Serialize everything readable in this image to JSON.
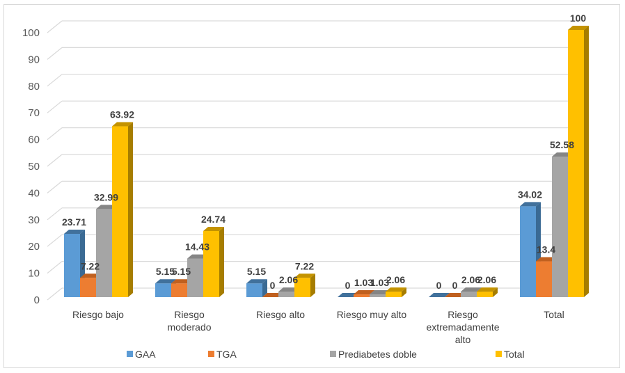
{
  "chart_data": {
    "type": "bar",
    "style": "3d-clustered-column",
    "title": "",
    "xlabel": "",
    "ylabel": "",
    "ylim": [
      0,
      100
    ],
    "yticks": [
      0,
      10,
      20,
      30,
      40,
      50,
      60,
      70,
      80,
      90,
      100
    ],
    "grid": true,
    "legend_position": "bottom",
    "categories": [
      [
        "Riesgo bajo"
      ],
      [
        "Riesgo",
        "moderado"
      ],
      [
        "Riesgo  alto"
      ],
      [
        "Riesgo muy alto"
      ],
      [
        "Riesgo",
        "extremadamente",
        "alto"
      ],
      [
        "Total"
      ]
    ],
    "series": [
      {
        "name": "GAA",
        "color": "#5b9bd5",
        "side": "#3a6a94",
        "top": "#41719c",
        "values": [
          23.71,
          5.15,
          5.15,
          0,
          0,
          34.02
        ]
      },
      {
        "name": "TGA",
        "color": "#ed7d31",
        "side": "#b35a1f",
        "top": "#c0601f",
        "values": [
          7.22,
          5.15,
          0,
          1.03,
          0,
          13.4
        ]
      },
      {
        "name": "Prediabetes doble",
        "color": "#a5a5a5",
        "side": "#7a7a7a",
        "top": "#858585",
        "values": [
          32.99,
          14.43,
          2.06,
          1.03,
          2.06,
          52.58
        ]
      },
      {
        "name": "Total",
        "color": "#ffc000",
        "side": "#a67d00",
        "top": "#c49300",
        "values": [
          63.92,
          24.74,
          7.22,
          2.06,
          2.06,
          100
        ]
      }
    ]
  }
}
